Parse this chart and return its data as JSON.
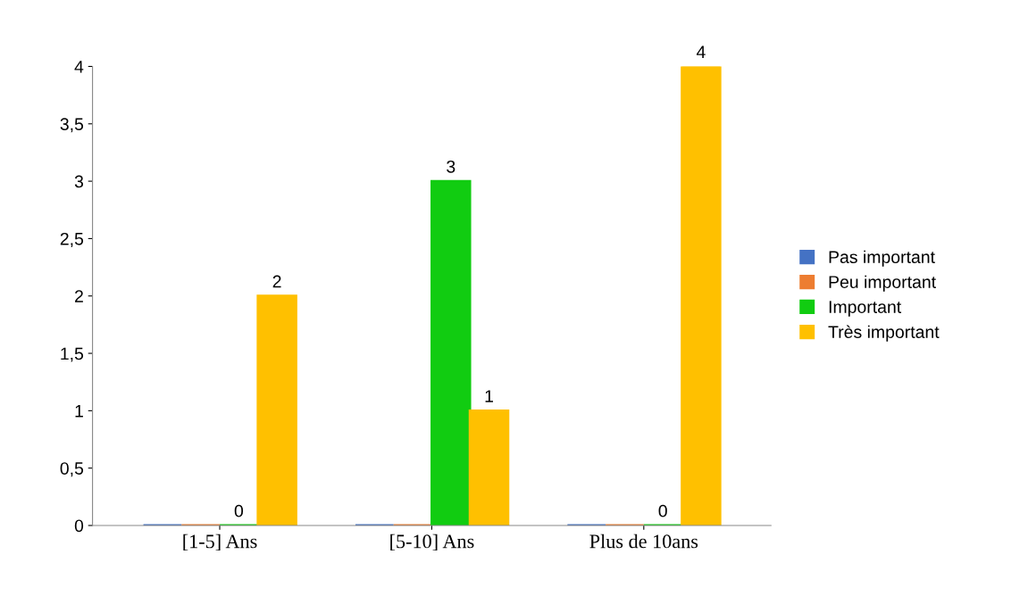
{
  "chart_data": {
    "type": "bar",
    "categories": [
      "[1-5] Ans",
      "[5-10] Ans",
      "Plus de 10ans"
    ],
    "series": [
      {
        "name": "Pas important",
        "color": "#4472c4",
        "values": [
          0,
          0,
          0
        ],
        "value_labels": [
          null,
          null,
          null
        ]
      },
      {
        "name": "Peu important",
        "color": "#ed7d31",
        "values": [
          0,
          0,
          0
        ],
        "value_labels": [
          null,
          null,
          null
        ]
      },
      {
        "name": "Important",
        "color": "#11cc11",
        "values": [
          0,
          3,
          0
        ],
        "value_labels": [
          "0",
          "3",
          "0"
        ]
      },
      {
        "name": "Très important",
        "color": "#ffc000",
        "values": [
          2,
          1,
          4
        ],
        "value_labels": [
          "2",
          "1",
          "4"
        ]
      }
    ],
    "ylim": [
      0,
      4
    ],
    "yticks": [
      0,
      {
        "value": 0.5,
        "label": "0,5"
      },
      1,
      {
        "value": 1.5,
        "label": "1,5"
      },
      2,
      {
        "value": 2.5,
        "label": "2,5"
      },
      3,
      {
        "value": 3.5,
        "label": "3,5"
      },
      4
    ],
    "grid": false,
    "legend": "right"
  }
}
